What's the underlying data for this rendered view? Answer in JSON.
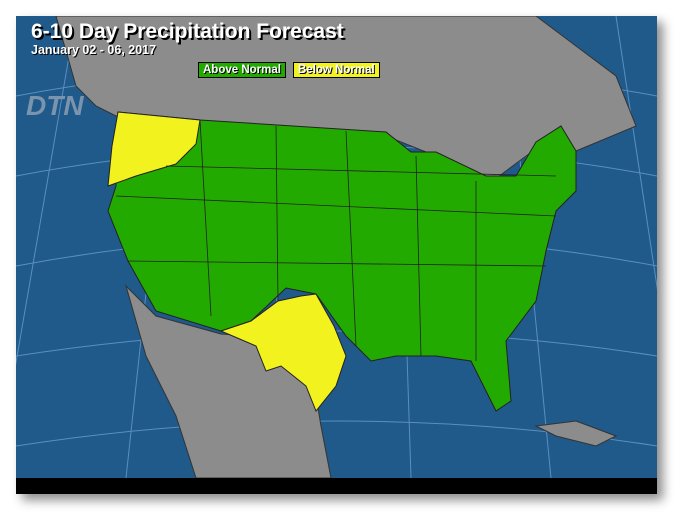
{
  "header": {
    "title": "6-10 Day Precipitation Forecast",
    "date_range": "January 02 - 06, 2017"
  },
  "legend": [
    {
      "label": "Above Normal",
      "color": "#22aa00"
    },
    {
      "label": "Below Normal",
      "color": "#f2f21e"
    }
  ],
  "logo": "DTN",
  "colors": {
    "ocean": "#1f5a8a",
    "land": "#8c8c8c",
    "above_normal": "#22aa00",
    "below_normal": "#f2f21e",
    "border": "#222222"
  }
}
